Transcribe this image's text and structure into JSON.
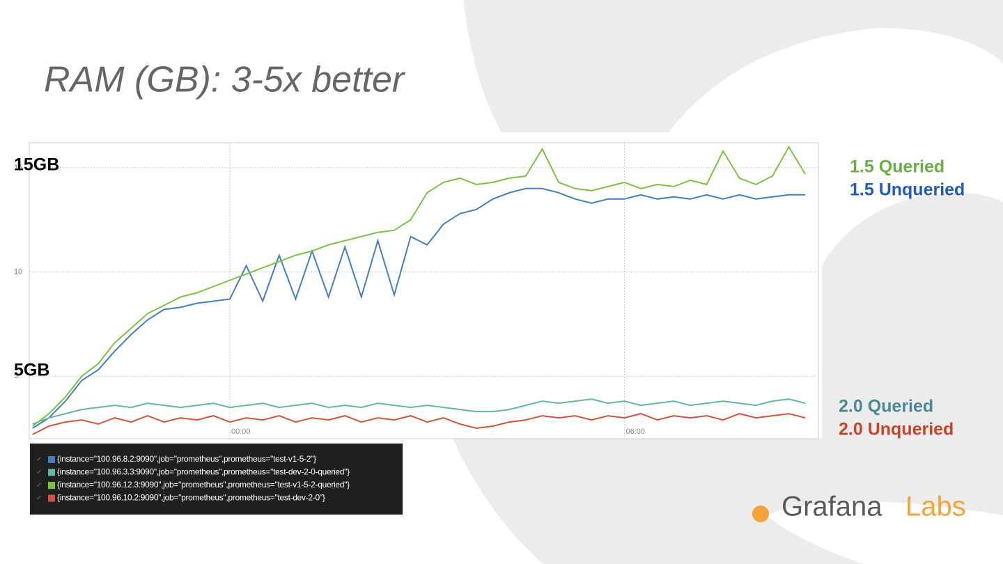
{
  "chart_data": {
    "type": "line",
    "title": "RAM (GB): 3-5x better",
    "x": [
      -3,
      -2.75,
      -2.5,
      -2.25,
      -2,
      -1.75,
      -1.5,
      -1.25,
      -1,
      -0.75,
      -0.5,
      -0.25,
      0,
      0.25,
      0.5,
      0.75,
      1,
      1.25,
      1.5,
      1.75,
      2,
      2.25,
      2.5,
      2.75,
      3,
      3.25,
      3.5,
      3.75,
      4,
      4.25,
      4.5,
      4.75,
      5,
      5.25,
      5.5,
      5.75,
      6,
      6.25,
      6.5,
      6.75,
      7,
      7.25,
      7.5,
      7.75,
      8,
      8.25,
      8.5,
      8.75
    ],
    "xlim": [
      -3.05,
      8.95
    ],
    "xticks": [
      {
        "value": 0,
        "label": "00:00"
      },
      {
        "value": 6,
        "label": "06:00"
      }
    ],
    "ylim": [
      2,
      16.2
    ],
    "yticks": [
      5,
      10,
      15
    ],
    "grid": true,
    "series": [
      {
        "name": "{instance=\"100.96.8.2:9090\",job=\"prometheus\",prometheus=\"test-v1-5-2\"}",
        "color": "#447ebc",
        "values": [
          2.5,
          3.0,
          3.8,
          4.8,
          5.3,
          6.2,
          7.0,
          7.7,
          8.2,
          8.3,
          8.5,
          8.6,
          8.7,
          10.3,
          8.6,
          10.8,
          8.7,
          11.0,
          8.8,
          11.2,
          8.8,
          11.5,
          8.9,
          11.7,
          11.3,
          12.3,
          12.8,
          13.0,
          13.5,
          13.8,
          14.0,
          14.0,
          13.8,
          13.5,
          13.3,
          13.5,
          13.5,
          13.7,
          13.5,
          13.6,
          13.5,
          13.7,
          13.5,
          13.7,
          13.5,
          13.6,
          13.7,
          13.7
        ]
      },
      {
        "name": "{instance=\"100.96.3.3:9090\",job=\"prometheus\",prometheus=\"test-dev-2-0-queried\"}",
        "color": "#5fb8a8",
        "values": [
          2.7,
          3.0,
          3.2,
          3.4,
          3.5,
          3.6,
          3.5,
          3.7,
          3.6,
          3.5,
          3.6,
          3.7,
          3.5,
          3.6,
          3.7,
          3.5,
          3.6,
          3.7,
          3.5,
          3.6,
          3.5,
          3.7,
          3.6,
          3.5,
          3.6,
          3.5,
          3.4,
          3.3,
          3.3,
          3.4,
          3.6,
          3.8,
          3.7,
          3.8,
          3.9,
          3.7,
          3.8,
          3.6,
          3.7,
          3.8,
          3.6,
          3.7,
          3.8,
          3.7,
          3.6,
          3.8,
          3.9,
          3.7
        ]
      },
      {
        "name": "{instance=\"100.96.12.3:9090\",job=\"prometheus\",prometheus=\"test-v1-5-2-queried\"}",
        "color": "#7cc242",
        "values": [
          2.6,
          3.2,
          4.0,
          5.0,
          5.6,
          6.6,
          7.3,
          8.0,
          8.4,
          8.8,
          9.0,
          9.3,
          9.6,
          9.9,
          10.2,
          10.5,
          10.8,
          11.0,
          11.3,
          11.5,
          11.7,
          11.9,
          12.0,
          12.5,
          13.8,
          14.3,
          14.5,
          14.2,
          14.3,
          14.5,
          14.6,
          15.9,
          14.3,
          14.0,
          13.9,
          14.1,
          14.3,
          14.0,
          14.2,
          14.1,
          14.4,
          14.2,
          15.8,
          14.5,
          14.2,
          14.6,
          16.0,
          14.7
        ]
      },
      {
        "name": "{instance=\"100.96.10.2:9090\",job=\"prometheus\",prometheus=\"test-dev-2-0\"}",
        "color": "#d5533d",
        "values": [
          2.2,
          2.6,
          2.8,
          2.9,
          2.7,
          3.0,
          2.8,
          3.1,
          2.8,
          3.0,
          2.9,
          3.1,
          2.8,
          3.0,
          2.9,
          3.1,
          2.8,
          3.0,
          2.9,
          3.1,
          2.8,
          3.0,
          2.9,
          3.1,
          2.8,
          3.0,
          2.7,
          2.5,
          2.6,
          2.8,
          2.9,
          3.1,
          3.0,
          3.1,
          2.9,
          3.1,
          3.0,
          3.2,
          2.9,
          3.1,
          3.0,
          3.1,
          2.9,
          3.2,
          3.0,
          3.1,
          3.2,
          3.0
        ]
      }
    ],
    "annotations": [
      "15GB",
      "5GB"
    ],
    "series_labels": [
      {
        "text": "1.5 Queried",
        "color": "#6aaf45"
      },
      {
        "text": "1.5 Unqueried",
        "color": "#1f5cbf"
      },
      {
        "text": "2.0 Queried",
        "color": "#4b8795"
      },
      {
        "text": "2.0 Unqueried",
        "color": "#c8432b"
      }
    ]
  },
  "logo": {
    "name": "Grafana",
    "suffix": "Labs"
  }
}
